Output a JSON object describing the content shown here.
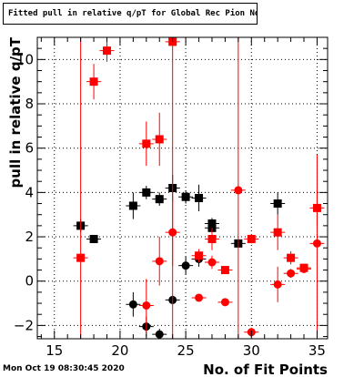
{
  "title": "Fitted pull in relative q/pT for Global Rec Pion NoHits",
  "timestamp": "Mon Oct 19 08:30:45 2020",
  "chart_data": {
    "type": "scatter",
    "title": "Fitted pull in relative q/pT for Global Rec Pion NoHits",
    "xlabel": "No. of Fit Points",
    "ylabel": "pull in relative q/pT",
    "xlim": [
      13.7,
      35.8
    ],
    "ylim": [
      -2.6,
      11.0
    ],
    "xticks": [
      15,
      20,
      25,
      30,
      35
    ],
    "yticks": [
      -2,
      0,
      2,
      4,
      6,
      8,
      10
    ],
    "grid": true,
    "series": [
      {
        "marker": "square",
        "color": "#000000",
        "points": [
          {
            "x": 17,
            "y": 2.5,
            "err": 0.3
          },
          {
            "x": 18,
            "y": 1.9,
            "err": 0.15
          },
          {
            "x": 21,
            "y": 3.4,
            "err": 0.6
          },
          {
            "x": 22,
            "y": 4.0,
            "err": 0.3
          },
          {
            "x": 23,
            "y": 3.7,
            "err": 0.3
          },
          {
            "x": 24,
            "y": 4.2,
            "err": 0.6
          },
          {
            "x": 25,
            "y": 3.8,
            "err": 0.3
          },
          {
            "x": 26,
            "y": 3.75,
            "err": 0.6
          },
          {
            "x": 27,
            "y": 2.6,
            "err": 0.25
          },
          {
            "x": 27,
            "y": 2.4,
            "err": 0.2
          },
          {
            "x": 29,
            "y": 1.7,
            "err": 0.15
          },
          {
            "x": 32,
            "y": 3.5,
            "err": 0.5
          }
        ]
      },
      {
        "marker": "circle",
        "color": "#000000",
        "points": [
          {
            "x": 21,
            "y": -1.05,
            "err": 0.55
          },
          {
            "x": 22,
            "y": -2.05,
            "err": 0.45
          },
          {
            "x": 23,
            "y": -2.4,
            "err": 0.25
          },
          {
            "x": 24,
            "y": -0.85,
            "err": 0.2
          },
          {
            "x": 25,
            "y": 0.7,
            "err": 0.4
          },
          {
            "x": 26,
            "y": 1.0,
            "err": 0.35
          }
        ]
      },
      {
        "marker": "square",
        "color": "#ff0000",
        "points": [
          {
            "x": 17,
            "y": 1.05,
            "err": 30
          },
          {
            "x": 18,
            "y": 9.0,
            "err": 0.8
          },
          {
            "x": 19,
            "y": 10.4,
            "err": 0.5
          },
          {
            "x": 22,
            "y": 6.2,
            "err": 1.0
          },
          {
            "x": 23,
            "y": 6.4,
            "err": 1.2
          },
          {
            "x": 24,
            "y": 10.8,
            "err": 30
          },
          {
            "x": 26,
            "y": 1.15,
            "err": 0.3
          },
          {
            "x": 27,
            "y": 1.9,
            "err": 0.5
          },
          {
            "x": 28,
            "y": 0.5,
            "err": 0.15
          },
          {
            "x": 30,
            "y": 1.9,
            "err": 0.2
          },
          {
            "x": 32,
            "y": 2.2,
            "err": 0.8
          },
          {
            "x": 33,
            "y": 1.05,
            "err": 0.3
          },
          {
            "x": 34,
            "y": 0.6,
            "err": 0.15
          },
          {
            "x": 35,
            "y": 3.3,
            "err": 0.8
          }
        ]
      },
      {
        "marker": "circle",
        "color": "#ff0000",
        "points": [
          {
            "x": 22,
            "y": -1.1,
            "err": 1.2
          },
          {
            "x": 23,
            "y": 0.9,
            "err": 1.1
          },
          {
            "x": 24,
            "y": 2.2,
            "err": 1.5
          },
          {
            "x": 26,
            "y": -0.75,
            "err": 0.15
          },
          {
            "x": 27,
            "y": 0.85,
            "err": 0.3
          },
          {
            "x": 28,
            "y": -0.95,
            "err": 0.15
          },
          {
            "x": 29,
            "y": 4.1,
            "err": 30
          },
          {
            "x": 30,
            "y": -2.3,
            "err": 0.2
          },
          {
            "x": 32,
            "y": -0.15,
            "err": 0.8
          },
          {
            "x": 33,
            "y": 0.35,
            "err": 0.2
          },
          {
            "x": 34,
            "y": 0.55,
            "err": 0.15
          },
          {
            "x": 35,
            "y": 1.7,
            "err": 4.0
          }
        ]
      }
    ]
  }
}
